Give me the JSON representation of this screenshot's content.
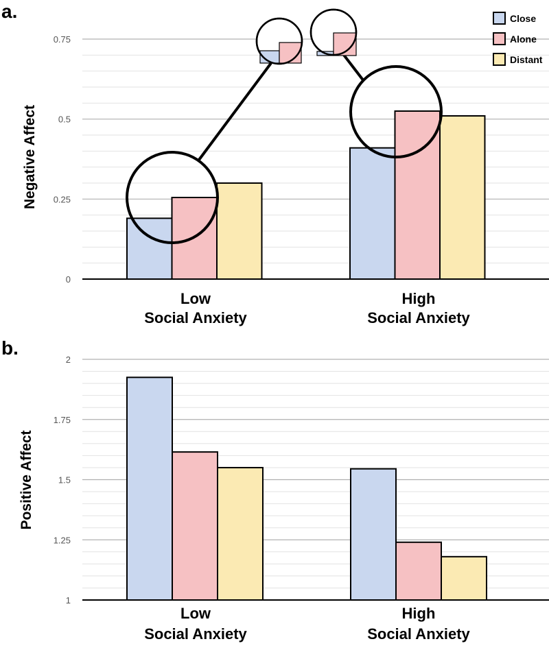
{
  "colors": {
    "Close": "#c9d7ef",
    "Alone": "#f6c1c3",
    "Distant": "#fbeab3",
    "gridMajor": "#b0b0b0",
    "gridMinor": "#e2e2e2",
    "axis": "#000000"
  },
  "chart_data": [
    {
      "type": "bar",
      "panel_label": "a.",
      "ylabel": "Negative Affect",
      "ylim": [
        0,
        0.8
      ],
      "yticks": [
        0,
        0.25,
        0.5,
        0.75
      ],
      "ytick_labels": [
        "0",
        "0.25",
        "0.5",
        "0.75"
      ],
      "categories": [
        {
          "line1": "Low",
          "line2": "Social Anxiety"
        },
        {
          "line1": "High",
          "line2": "Social Anxiety"
        }
      ],
      "series": [
        {
          "name": "Close",
          "values": [
            0.19,
            0.41
          ]
        },
        {
          "name": "Alone",
          "values": [
            0.255,
            0.525
          ]
        },
        {
          "name": "Distant",
          "values": [
            0.3,
            0.51
          ]
        }
      ],
      "legend": {
        "position": "top-right",
        "entries": [
          "Close",
          "Alone",
          "Distant"
        ]
      },
      "annotations": "magnification circles highlighting Close vs Alone difference in each group"
    },
    {
      "type": "bar",
      "panel_label": "b.",
      "ylabel": "Positive Affect",
      "ylim": [
        1,
        2
      ],
      "yticks": [
        1,
        1.25,
        1.5,
        1.75,
        2
      ],
      "ytick_labels": [
        "1",
        "1.25",
        "1.5",
        "1.75",
        "2"
      ],
      "categories": [
        {
          "line1": "Low",
          "line2": "Social Anxiety"
        },
        {
          "line1": "High",
          "line2": "Social Anxiety"
        }
      ],
      "series": [
        {
          "name": "Close",
          "values": [
            1.925,
            1.545
          ]
        },
        {
          "name": "Alone",
          "values": [
            1.615,
            1.24
          ]
        },
        {
          "name": "Distant",
          "values": [
            1.55,
            1.18
          ]
        }
      ]
    }
  ]
}
